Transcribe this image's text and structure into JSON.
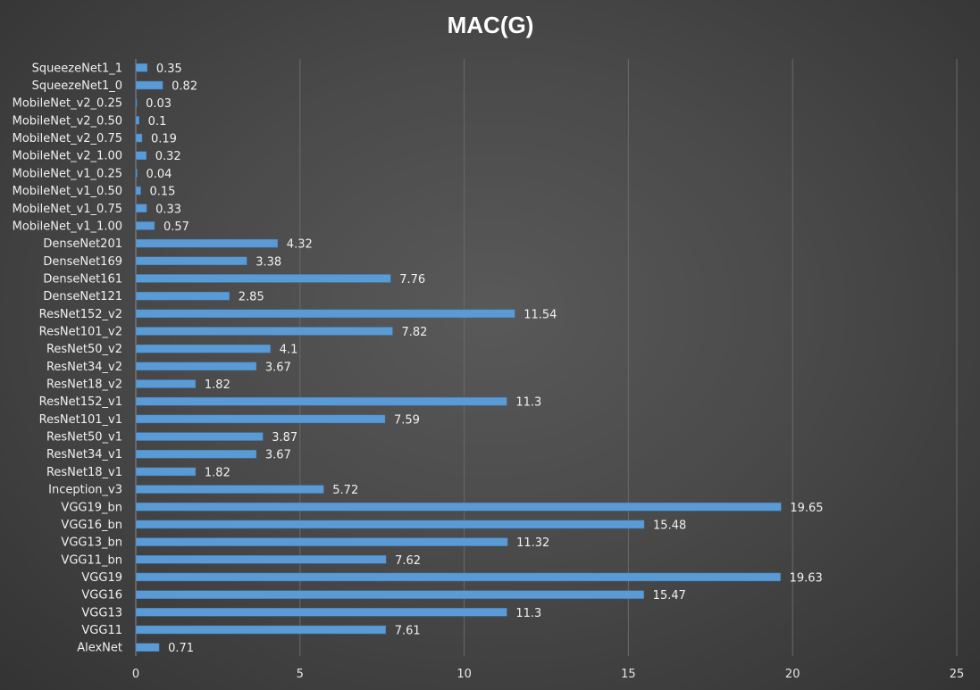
{
  "chart_data": {
    "type": "bar",
    "orientation": "horizontal",
    "title": "MAC(G)",
    "xlabel": "",
    "ylabel": "",
    "xlim": [
      0,
      25
    ],
    "x_ticks": [
      "0",
      "5",
      "10",
      "15",
      "20",
      "25"
    ],
    "grid": true,
    "legend": "none",
    "bar_color": "#5b9bd5",
    "categories": [
      "SqueezeNet1_1",
      "SqueezeNet1_0",
      "MobileNet_v2_0.25",
      "MobileNet_v2_0.50",
      "MobileNet_v2_0.75",
      "MobileNet_v2_1.00",
      "MobileNet_v1_0.25",
      "MobileNet_v1_0.50",
      "MobileNet_v1_0.75",
      "MobileNet_v1_1.00",
      "DenseNet201",
      "DenseNet169",
      "DenseNet161",
      "DenseNet121",
      "ResNet152_v2",
      "ResNet101_v2",
      "ResNet50_v2",
      "ResNet34_v2",
      "ResNet18_v2",
      "ResNet152_v1",
      "ResNet101_v1",
      "ResNet50_v1",
      "ResNet34_v1",
      "ResNet18_v1",
      "Inception_v3",
      "VGG19_bn",
      "VGG16_bn",
      "VGG13_bn",
      "VGG11_bn",
      "VGG19",
      "VGG16",
      "VGG13",
      "VGG11",
      "AlexNet"
    ],
    "values": [
      0.35,
      0.82,
      0.03,
      0.1,
      0.19,
      0.32,
      0.04,
      0.15,
      0.33,
      0.57,
      4.32,
      3.38,
      7.76,
      2.85,
      11.54,
      7.82,
      4.1,
      3.67,
      1.82,
      11.3,
      7.59,
      3.87,
      3.67,
      1.82,
      5.72,
      19.65,
      15.48,
      11.32,
      7.62,
      19.63,
      15.47,
      11.3,
      7.61,
      0.71
    ],
    "value_labels": [
      "0.35",
      "0.82",
      "0.03",
      "0.1",
      "0.19",
      "0.32",
      "0.04",
      "0.15",
      "0.33",
      "0.57",
      "4.32",
      "3.38",
      "7.76",
      "2.85",
      "11.54",
      "7.82",
      "4.1",
      "3.67",
      "1.82",
      "11.3",
      "7.59",
      "3.87",
      "3.67",
      "1.82",
      "5.72",
      "19.65",
      "15.48",
      "11.32",
      "7.62",
      "19.63",
      "15.47",
      "11.3",
      "7.61",
      "0.71"
    ]
  }
}
